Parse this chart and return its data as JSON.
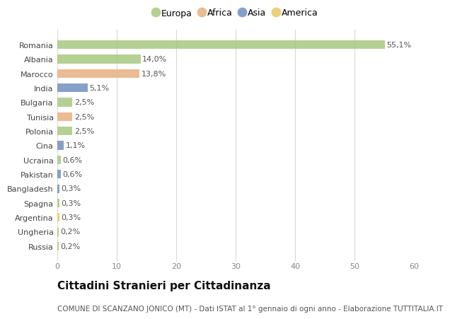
{
  "countries": [
    "Romania",
    "Albania",
    "Marocco",
    "India",
    "Bulgaria",
    "Tunisia",
    "Polonia",
    "Cina",
    "Ucraina",
    "Pakistan",
    "Bangladesh",
    "Spagna",
    "Argentina",
    "Ungheria",
    "Russia"
  ],
  "values": [
    55.1,
    14.0,
    13.8,
    5.1,
    2.5,
    2.5,
    2.5,
    1.1,
    0.6,
    0.6,
    0.3,
    0.3,
    0.3,
    0.2,
    0.2
  ],
  "labels": [
    "55,1%",
    "14,0%",
    "13,8%",
    "5,1%",
    "2,5%",
    "2,5%",
    "2,5%",
    "1,1%",
    "0,6%",
    "0,6%",
    "0,3%",
    "0,3%",
    "0,3%",
    "0,2%",
    "0,2%"
  ],
  "continents": [
    "Europa",
    "Europa",
    "Africa",
    "Asia",
    "Europa",
    "Africa",
    "Europa",
    "Asia",
    "Europa",
    "Asia",
    "Asia",
    "Europa",
    "America",
    "Europa",
    "Europa"
  ],
  "continent_colors": {
    "Europa": "#a8c880",
    "Africa": "#e8b080",
    "Asia": "#7090c0",
    "America": "#e8c860"
  },
  "legend_order": [
    "Europa",
    "Africa",
    "Asia",
    "America"
  ],
  "title": "Cittadini Stranieri per Cittadinanza",
  "subtitle": "COMUNE DI SCANZANO JONICO (MT) - Dati ISTAT al 1° gennaio di ogni anno - Elaborazione TUTTITALIA.IT",
  "xlim": [
    0,
    60
  ],
  "xticks": [
    0,
    10,
    20,
    30,
    40,
    50,
    60
  ],
  "background_color": "#ffffff",
  "grid_color": "#d8d8d8",
  "bar_height": 0.6,
  "title_fontsize": 11,
  "subtitle_fontsize": 7.5,
  "label_fontsize": 8,
  "tick_fontsize": 8,
  "legend_fontsize": 9
}
